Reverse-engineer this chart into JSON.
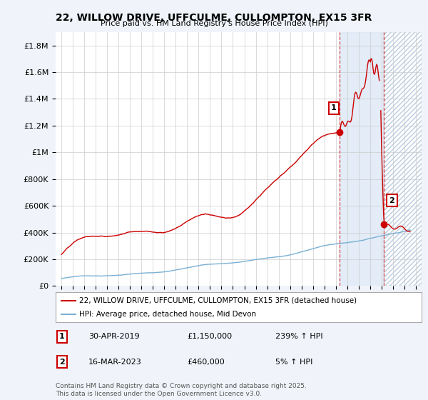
{
  "title": "22, WILLOW DRIVE, UFFCULME, CULLOMPTON, EX15 3FR",
  "subtitle": "Price paid vs. HM Land Registry's House Price Index (HPI)",
  "legend_label_red": "22, WILLOW DRIVE, UFFCULME, CULLOMPTON, EX15 3FR (detached house)",
  "legend_label_blue": "HPI: Average price, detached house, Mid Devon",
  "annotation1_date": "30-APR-2019",
  "annotation1_price": "£1,150,000",
  "annotation1_hpi": "239% ↑ HPI",
  "annotation2_date": "16-MAR-2023",
  "annotation2_price": "£460,000",
  "annotation2_hpi": "5% ↑ HPI",
  "footer": "Contains HM Land Registry data © Crown copyright and database right 2025.\nThis data is licensed under the Open Government Licence v3.0.",
  "xlim_start": 1994.5,
  "xlim_end": 2026.5,
  "ylim_min": 0,
  "ylim_max": 1900000,
  "yticks": [
    0,
    200000,
    400000,
    600000,
    800000,
    1000000,
    1200000,
    1400000,
    1600000,
    1800000
  ],
  "ytick_labels": [
    "£0",
    "£200K",
    "£400K",
    "£600K",
    "£800K",
    "£1M",
    "£1.2M",
    "£1.4M",
    "£1.6M",
    "£1.8M"
  ],
  "background_color": "#f0f4fa",
  "plot_bg_color": "#ffffff",
  "red_color": "#cc0000",
  "blue_color": "#7ab0d4",
  "shade_color": "#dce8f5",
  "vline1_x": 2019.33,
  "vline2_x": 2023.21,
  "ann1_x": 2019.33,
  "ann1_y": 1150000,
  "ann2_x": 2023.21,
  "ann2_y": 460000,
  "sale1_year": 2019.33,
  "sale1_price": 1150000,
  "sale2_year": 2023.21,
  "sale2_price": 460000
}
